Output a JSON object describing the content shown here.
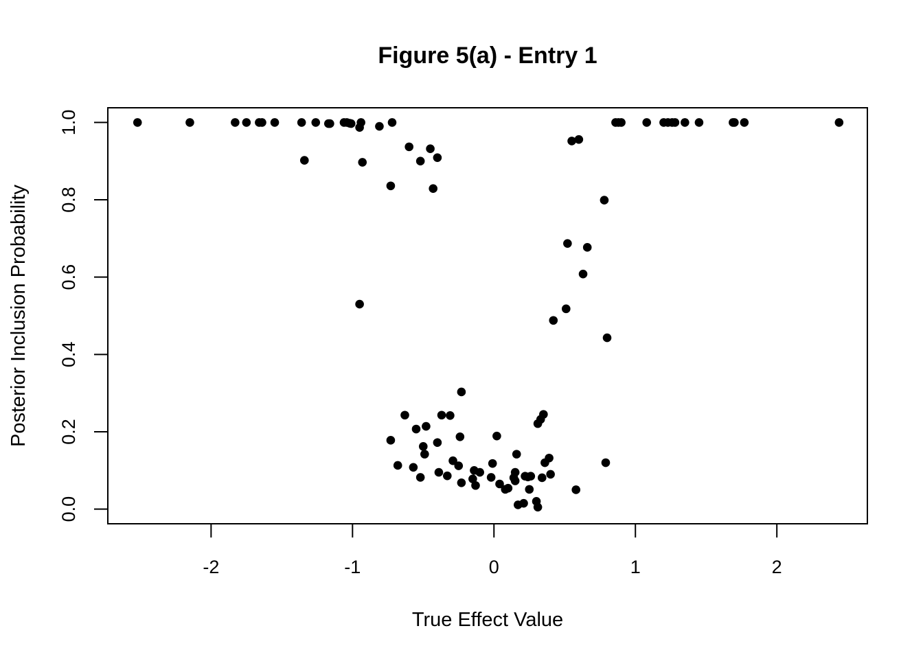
{
  "chart_data": {
    "type": "scatter",
    "title": "Figure 5(a) - Entry 1",
    "xlabel": "True Effect Value",
    "ylabel": "Posterior Inclusion Probability",
    "xlim": [
      -2.73,
      2.64
    ],
    "ylim": [
      -0.038,
      1.038
    ],
    "x_ticks": [
      -2,
      -1,
      0,
      1,
      2
    ],
    "x_tick_labels": [
      "-2",
      "-1",
      "0",
      "1",
      "2"
    ],
    "y_ticks": [
      0.0,
      0.2,
      0.4,
      0.6,
      0.8,
      1.0
    ],
    "y_tick_labels": [
      "0.0",
      "0.2",
      "0.4",
      "0.6",
      "0.8",
      "1.0"
    ],
    "grid": false,
    "legend": "none",
    "marker_color": "#000000",
    "points": [
      [
        -2.52,
        1.0
      ],
      [
        -2.15,
        1.0
      ],
      [
        -1.83,
        1.0
      ],
      [
        -1.75,
        1.0
      ],
      [
        -1.66,
        1.0
      ],
      [
        -1.64,
        1.0
      ],
      [
        -1.55,
        1.0
      ],
      [
        -1.36,
        1.0
      ],
      [
        -1.26,
        1.0
      ],
      [
        -1.17,
        0.997
      ],
      [
        -1.16,
        0.997
      ],
      [
        -1.06,
        1.0
      ],
      [
        -1.04,
        1.0
      ],
      [
        -1.02,
        0.998
      ],
      [
        -1.01,
        0.997
      ],
      [
        -0.95,
        0.987
      ],
      [
        -0.94,
        1.0
      ],
      [
        -0.81,
        0.99
      ],
      [
        -0.72,
        1.0
      ],
      [
        -1.34,
        0.902
      ],
      [
        -0.93,
        0.897
      ],
      [
        -0.73,
        0.836
      ],
      [
        -0.6,
        0.937
      ],
      [
        -0.52,
        0.9
      ],
      [
        -0.45,
        0.932
      ],
      [
        -0.4,
        0.909
      ],
      [
        -0.43,
        0.829
      ],
      [
        -0.95,
        0.53
      ],
      [
        0.86,
        1.0
      ],
      [
        0.88,
        1.0
      ],
      [
        0.9,
        1.0
      ],
      [
        1.08,
        1.0
      ],
      [
        1.2,
        1.0
      ],
      [
        1.23,
        1.0
      ],
      [
        1.26,
        1.0
      ],
      [
        1.28,
        1.0
      ],
      [
        1.35,
        1.0
      ],
      [
        1.45,
        1.0
      ],
      [
        1.69,
        1.0
      ],
      [
        1.7,
        1.0
      ],
      [
        1.77,
        1.0
      ],
      [
        2.44,
        1.0
      ],
      [
        0.55,
        0.952
      ],
      [
        0.6,
        0.956
      ],
      [
        0.78,
        0.799
      ],
      [
        0.52,
        0.687
      ],
      [
        0.66,
        0.677
      ],
      [
        0.63,
        0.608
      ],
      [
        0.51,
        0.518
      ],
      [
        0.42,
        0.488
      ],
      [
        0.8,
        0.443
      ],
      [
        0.79,
        0.12
      ],
      [
        -0.23,
        0.303
      ],
      [
        -0.63,
        0.243
      ],
      [
        -0.37,
        0.243
      ],
      [
        -0.31,
        0.242
      ],
      [
        -0.55,
        0.207
      ],
      [
        -0.48,
        0.214
      ],
      [
        -0.73,
        0.178
      ],
      [
        -0.4,
        0.172
      ],
      [
        -0.5,
        0.162
      ],
      [
        -0.49,
        0.142
      ],
      [
        -0.24,
        0.187
      ],
      [
        0.02,
        0.189
      ],
      [
        -0.29,
        0.125
      ],
      [
        -0.68,
        0.113
      ],
      [
        -0.57,
        0.108
      ],
      [
        -0.25,
        0.112
      ],
      [
        -0.52,
        0.082
      ],
      [
        -0.39,
        0.095
      ],
      [
        -0.33,
        0.086
      ],
      [
        -0.23,
        0.068
      ],
      [
        -0.14,
        0.1
      ],
      [
        -0.1,
        0.095
      ],
      [
        -0.15,
        0.078
      ],
      [
        -0.13,
        0.061
      ],
      [
        -0.01,
        0.118
      ],
      [
        -0.02,
        0.082
      ],
      [
        0.04,
        0.065
      ],
      [
        0.08,
        0.051
      ],
      [
        0.1,
        0.054
      ],
      [
        0.16,
        0.142
      ],
      [
        0.15,
        0.095
      ],
      [
        0.14,
        0.081
      ],
      [
        0.15,
        0.073
      ],
      [
        0.22,
        0.085
      ],
      [
        0.24,
        0.083
      ],
      [
        0.26,
        0.085
      ],
      [
        0.25,
        0.051
      ],
      [
        0.31,
        0.221
      ],
      [
        0.33,
        0.232
      ],
      [
        0.35,
        0.245
      ],
      [
        0.36,
        0.12
      ],
      [
        0.39,
        0.132
      ],
      [
        0.4,
        0.09
      ],
      [
        0.34,
        0.081
      ],
      [
        0.58,
        0.05
      ],
      [
        0.17,
        0.011
      ],
      [
        0.21,
        0.015
      ],
      [
        0.3,
        0.02
      ],
      [
        0.31,
        0.005
      ]
    ]
  }
}
